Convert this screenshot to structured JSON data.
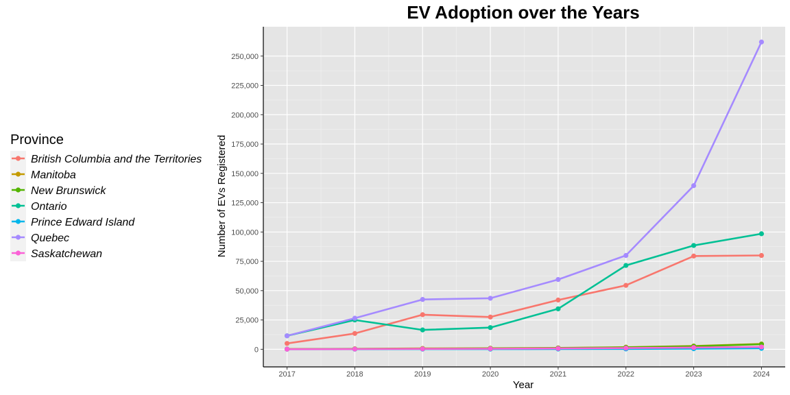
{
  "chart_data": {
    "type": "line",
    "title": "EV Adoption over the Years",
    "xlabel": "Year",
    "ylabel": "Number of EVs Registered",
    "x": [
      2017,
      2018,
      2019,
      2020,
      2021,
      2022,
      2023,
      2024
    ],
    "x_tick_labels": [
      "2017",
      "2018",
      "2019",
      "2020",
      "2021",
      "2022",
      "2023",
      "2024"
    ],
    "ylim": [
      -15000,
      275000
    ],
    "y_ticks": [
      0,
      25000,
      50000,
      75000,
      100000,
      125000,
      150000,
      175000,
      200000,
      225000,
      250000
    ],
    "y_tick_labels": [
      "0",
      "25,000",
      "50,000",
      "75,000",
      "100,000",
      "125,000",
      "150,000",
      "175,000",
      "200,000",
      "225,000",
      "250,000"
    ],
    "grid": true,
    "legend": {
      "title": "Province",
      "position": "left"
    },
    "series": [
      {
        "name": "British Columbia and the Territories",
        "color": "#F8766D",
        "values": [
          5000,
          13500,
          29500,
          27500,
          42000,
          54500,
          79500,
          80000
        ]
      },
      {
        "name": "Manitoba",
        "color": "#C49A00",
        "values": [
          200,
          400,
          700,
          900,
          1200,
          1800,
          2800,
          4500
        ]
      },
      {
        "name": "New Brunswick",
        "color": "#53B400",
        "values": [
          150,
          300,
          500,
          700,
          1000,
          1600,
          2600,
          4300
        ]
      },
      {
        "name": "Ontario",
        "color": "#00C094",
        "values": [
          11500,
          25000,
          16500,
          18500,
          34500,
          71500,
          88500,
          98500
        ]
      },
      {
        "name": "Prince Edward Island",
        "color": "#00B6EB",
        "values": [
          50,
          80,
          120,
          150,
          200,
          300,
          500,
          800
        ]
      },
      {
        "name": "Quebec",
        "color": "#A58AFF",
        "values": [
          11500,
          26500,
          42500,
          43500,
          59500,
          80000,
          139500,
          262000
        ]
      },
      {
        "name": "Saskatchewan",
        "color": "#FB61D7",
        "values": [
          100,
          200,
          350,
          500,
          700,
          1000,
          1500,
          2000
        ]
      }
    ]
  }
}
